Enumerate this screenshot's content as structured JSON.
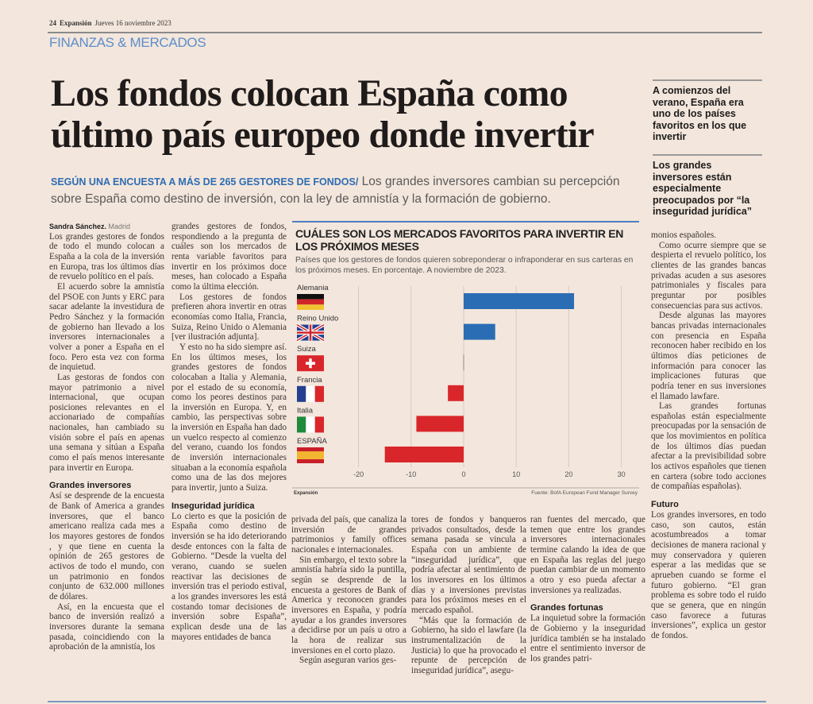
{
  "folio": {
    "page": "24",
    "paper": "Expansión",
    "date": "Jueves 16 noviembre 2023"
  },
  "section": "FINANZAS & MERCADOS",
  "headline": [
    "Los fondos colocan España como",
    "último país europeo donde invertir"
  ],
  "deck": {
    "kicker": "SEGÚN UNA ENCUESTA A MÁS DE 265 GESTORES DE FONDOS/",
    "text": "Los grandes inversores cambian su percepción sobre España como destino de inversión, con la ley de amnistía y la formación de gobierno."
  },
  "sidebar": [
    "A comienzos del verano, España era uno de los países favoritos en los que invertir",
    "Los grandes inversores están especialmente preocupados por “la inseguridad jurídica”"
  ],
  "byline": {
    "author": "Sandra Sánchez.",
    "city": "Madrid"
  },
  "columns": [
    [
      {
        "t": "p",
        "ni": true,
        "text": "Los grandes gestores de fondos de todo el mundo colocan a España a la cola de la inversión en Europa, tras los últimos días de revuelo político en el país."
      },
      {
        "t": "p",
        "text": "El acuerdo sobre la amnistía del PSOE con Junts y ERC para sacar adelante la investidura de Pedro Sánchez y la formación de gobierno han llevado a los inversores internacionales a volver a poner a España en el foco. Pero esta vez con forma de inquietud."
      },
      {
        "t": "p",
        "text": "Las gestoras de fondos con mayor patrimonio a nivel internacional, que ocupan posiciones relevantes en el accionariado de compañías nacionales, han cambiado su visión sobre el país en apenas una semana y sitúan a España como el país menos interesante para invertir en Europa."
      },
      {
        "t": "h",
        "text": "Grandes inversores"
      },
      {
        "t": "p",
        "ni": true,
        "text": "Así se desprende de la encuesta de Bank of America a grandes inversores, que el banco americano realiza cada mes a los mayores gestores de fondos , y que tiene en cuenta la opinión de 265 gestores de activos de todo el mundo, con un patrimonio en fondos conjunto de 632.000 millones de dólares."
      },
      {
        "t": "p",
        "text": "Así, en la encuesta que el banco de inversión realizó a inversores durante la semana pasada, coincidiendo con la aprobación de la amnistía, los"
      }
    ],
    [
      {
        "t": "p",
        "ni": true,
        "text": "grandes gestores de fondos, respondiendo a la pregunta de cuáles son los mercados de renta variable favoritos para invertir en los próximos doce meses, han colocado a España como la última elección."
      },
      {
        "t": "p",
        "text": "Los gestores de fondos prefieren ahora invertir en otras economías como Italia, Francia, Suiza, Reino Unido o Alemania [ver ilustración adjunta]."
      },
      {
        "t": "p",
        "text": "Y esto no ha sido siempre así. En los últimos meses, los grandes gestores de fondos colocaban a Italia y Alemania, por el estado de su economía, como los peores destinos para la inversión en Europa. Y, en cambio, las perspectivas sobre la inversión en España han dado un vuelco respecto al comienzo del verano, cuando los fondos de inversión internacionales situaban a la economía española como una de las dos mejores para invertir, junto a Suiza."
      },
      {
        "t": "h",
        "text": "Inseguridad jurídica"
      },
      {
        "t": "p",
        "ni": true,
        "text": "Lo cierto es que la posición de España como destino de inversión se ha ido deteriorando desde entonces con la falta de Gobierno. “Desde la vuelta del verano, cuando se suelen reactivar las decisiones de inversión tras el periodo estival, a los grandes inversores les está costando tomar decisiones de inversión sobre España”, explican desde una de las mayores entidades de banca"
      }
    ],
    [
      {
        "t": "p",
        "ni": true,
        "text": "privada del país, que canaliza la inversión de grandes patrimonios y family offices nacionales e internacionales."
      },
      {
        "t": "p",
        "text": "Sin embargo, el texto sobre la amnistía habría sido la puntilla, según se desprende de la encuesta a gestores de Bank of America y reconocen grandes inversores en España, y podría ayudar a los grandes inversores a decidirse por un país u otro a la hora de realizar sus inversiones en el corto plazo."
      },
      {
        "t": "p",
        "text": "Según aseguran varios ges-"
      }
    ],
    [
      {
        "t": "p",
        "ni": true,
        "text": "tores de fondos y banqueros privados consultados, desde la semana pasada se vincula a España con un ambiente de “inseguridad jurídica”, que podría afectar al sentimiento de los inversores en los últimos días y a inversiones previstas para los próximos meses en el mercado español."
      },
      {
        "t": "p",
        "text": "“Más que la formación de Gobierno, ha sido el lawfare (la instrumentalización de la Justicia) lo que ha provocado el repunte de percepción de inseguridad jurídica”, asegu-"
      }
    ],
    [
      {
        "t": "p",
        "ni": true,
        "text": "ran fuentes del mercado, que temen que entre los grandes inversores internacionales termine calando la idea de que en España las reglas del juego puedan cambiar de un momento a otro y eso pueda afectar a inversiones ya realizadas."
      },
      {
        "t": "h",
        "text": "Grandes fortunas"
      },
      {
        "t": "p",
        "ni": true,
        "text": "La inquietud sobre la formación de Gobierno y la inseguridad jurídica también se ha instalado entre el sentimiento inversor de los grandes patri-"
      }
    ],
    [
      {
        "t": "p",
        "ni": true,
        "text": "monios españoles."
      },
      {
        "t": "p",
        "text": "Como ocurre siempre que se despierta el revuelo político, los clientes de las grandes bancas privadas acuden a sus asesores patrimoniales y fiscales para preguntar por posibles consecuencias para sus activos."
      },
      {
        "t": "p",
        "text": "Desde algunas las mayores bancas privadas internacionales con presencia en España reconocen haber recibido en los últimos días peticiones de información para conocer las implicaciones futuras que podría tener en sus inversiones el llamado lawfare."
      },
      {
        "t": "p",
        "text": "Las grandes fortunas españolas están especialmente preocupadas por la sensación de que los movimientos en política de los últimos días puedan afectar a la previsibilidad sobre los activos españoles que tienen en cartera (sobre todo acciones de compañías españolas)."
      },
      {
        "t": "h",
        "text": "Futuro"
      },
      {
        "t": "p",
        "ni": true,
        "text": "Los grandes inversores, en todo caso, son cautos, están acostumbreados a tomar decisiones de manera racional y muy conservadora y quieren esperar a las medidas que se aprueben cuando se forme el futuro gobierno. “El gran problema es sobre todo el ruido que se genera, que en ningún caso favorece a futuras inversiones”, explica un gestor de fondos."
      }
    ]
  ],
  "chart_data": {
    "type": "bar",
    "orientation": "horizontal",
    "title": "CUÁLES SON LOS MERCADOS FAVORITOS PARA INVERTIR EN LOS PRÓXIMOS MESES",
    "subtitle": "Países que los gestores de fondos quieren sobreponderar o infraponderar en sus carteras en los próximos meses.  En porcentaje. A noviembre de 2023.",
    "categories": [
      "Alemania",
      "Reino Unido",
      "Suiza",
      "Francia",
      "Italia",
      "ESPAÑA"
    ],
    "values": [
      21,
      6,
      0,
      -3,
      -9,
      -15
    ],
    "flags": [
      "germany-flag",
      "uk-flag",
      "switzerland-flag",
      "france-flag",
      "italy-flag",
      "spain-flag"
    ],
    "xlim": [
      -20,
      30
    ],
    "xticks": [
      -20,
      -10,
      0,
      10,
      20,
      30
    ],
    "grid": true,
    "colors": {
      "positive": "#2a6db5",
      "negative": "#d9262b",
      "grid": "#d6cbc2"
    },
    "brand": "Expansión",
    "source": "Fuente: BofA European Fund Manager Survey"
  }
}
